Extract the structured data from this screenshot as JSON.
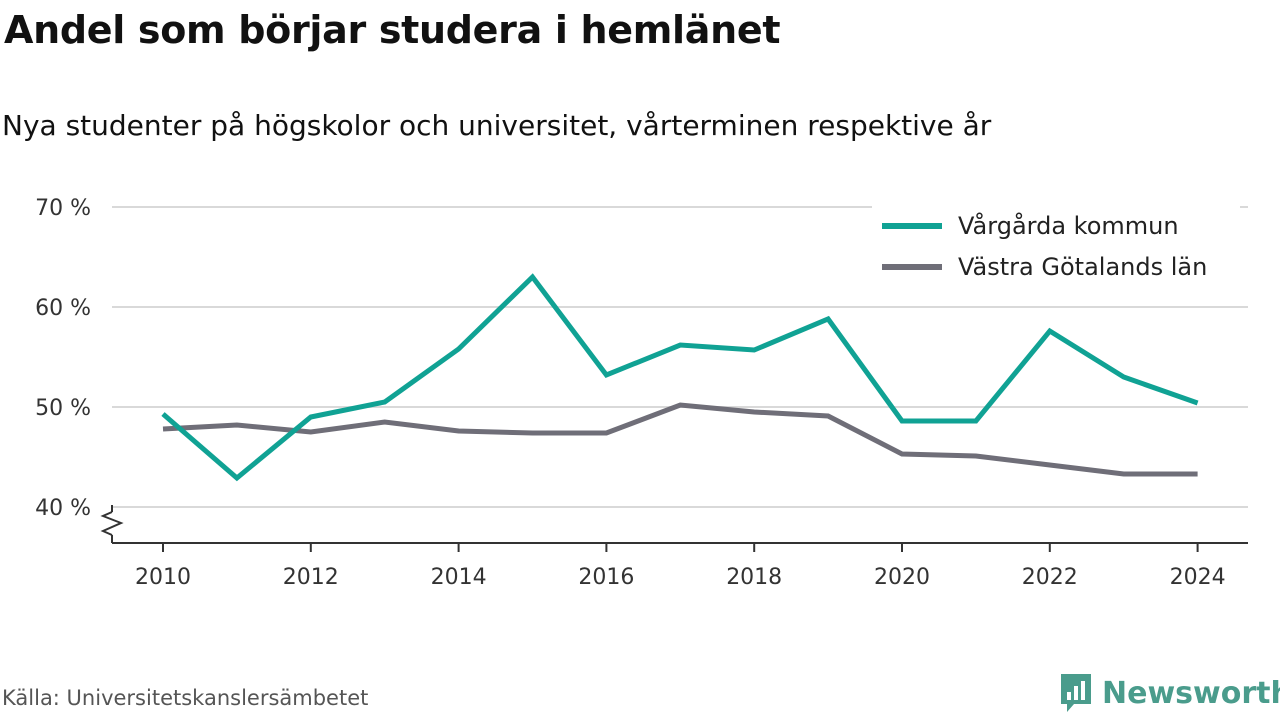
{
  "header": {
    "title": "Andel som börjar studera i hemlänet",
    "subtitle": "Nya studenter på högskolor och universitet, vårterminen respektive år"
  },
  "footer": {
    "source": "Källa: Universitetskanslersämbetet",
    "brand": "Newsworthy",
    "brand_color": "#4a9c8c",
    "brand_icon": "bar-chart-speech-bubble-icon"
  },
  "chart_data": {
    "type": "line",
    "x": [
      2010,
      2011,
      2012,
      2013,
      2014,
      2015,
      2016,
      2017,
      2018,
      2019,
      2020,
      2021,
      2022,
      2023,
      2024
    ],
    "series": [
      {
        "name": "Vårgårda kommun",
        "color": "#10a294",
        "values": [
          49.3,
          42.9,
          49.0,
          50.5,
          55.8,
          63.0,
          53.2,
          56.2,
          55.7,
          58.8,
          48.6,
          48.6,
          57.6,
          53.0,
          50.4
        ]
      },
      {
        "name": "Västra Götalands län",
        "color": "#6f6e78",
        "values": [
          47.8,
          48.2,
          47.5,
          48.5,
          47.6,
          47.4,
          47.4,
          50.2,
          49.5,
          49.1,
          45.3,
          45.1,
          44.2,
          43.3,
          43.3
        ]
      }
    ],
    "ylim": [
      40,
      70
    ],
    "yticks": [
      40,
      50,
      60,
      70
    ],
    "ytick_labels": [
      "40 %",
      "50 %",
      "60 %",
      "70 %"
    ],
    "xticks": [
      2010,
      2012,
      2014,
      2016,
      2018,
      2020,
      2022,
      2024
    ],
    "xtick_labels": [
      "2010",
      "2012",
      "2014",
      "2016",
      "2018",
      "2020",
      "2022",
      "2024"
    ],
    "axis_break": true,
    "grid": "horizontal",
    "legend_position": "top-right",
    "gridline_color": "#d9d9d9",
    "axis_color": "#333333"
  }
}
